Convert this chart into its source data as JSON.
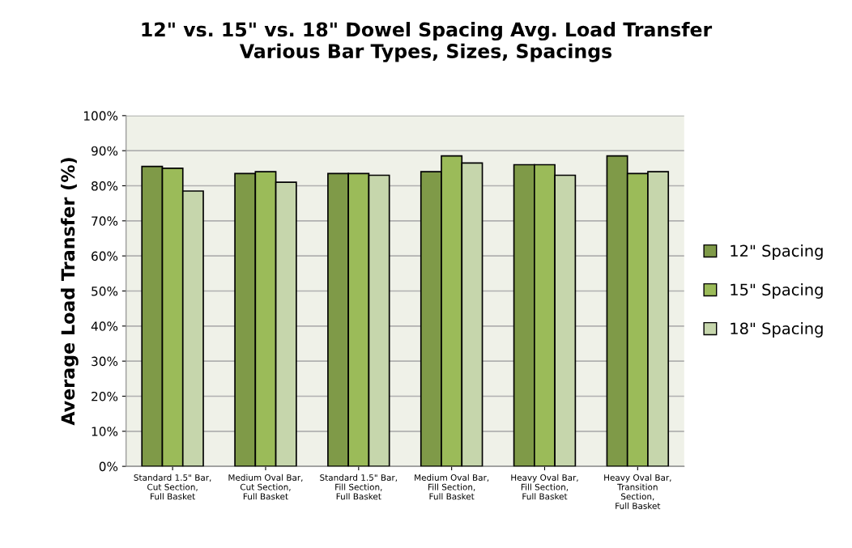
{
  "chart_data": {
    "type": "bar",
    "title": "12\" vs. 15\" vs. 18\" Dowel Spacing Avg. Load Transfer\nVarious Bar Types, Sizes, Spacings",
    "ylabel": "Average Load Transfer (%)",
    "categories": [
      "Standard 1.5\" Bar,\nCut Section,\nFull Basket",
      "Medium Oval Bar,\nCut Section,\nFull Basket",
      "Standard 1.5\" Bar,\nFill Section,\nFull Basket",
      "Medium Oval Bar,\nFill Section,\nFull Basket",
      "Heavy Oval Bar,\nFill Section,\nFull Basket",
      "Heavy Oval Bar,\nTransition\nSection,\nFull Basket"
    ],
    "series": [
      {
        "name": "12\" Spacing",
        "color": "#7f9a48",
        "values": [
          85.5,
          83.5,
          83.5,
          84,
          86,
          88.5
        ]
      },
      {
        "name": "15\" Spacing",
        "color": "#9bbb59",
        "values": [
          85,
          84,
          83.5,
          88.5,
          86,
          83.5
        ]
      },
      {
        "name": "18\" Spacing",
        "color": "#c6d6ac",
        "values": [
          78.5,
          81,
          83,
          86.5,
          83,
          84
        ]
      }
    ],
    "ylim": [
      0,
      100
    ],
    "yticks": [
      {
        "value": 0,
        "label": "0%"
      },
      {
        "value": 10,
        "label": "10%"
      },
      {
        "value": 20,
        "label": "20%"
      },
      {
        "value": 30,
        "label": "30%"
      },
      {
        "value": 40,
        "label": "40%"
      },
      {
        "value": 50,
        "label": "50%"
      },
      {
        "value": 60,
        "label": "60%"
      },
      {
        "value": 70,
        "label": "70%"
      },
      {
        "value": 80,
        "label": "80%"
      },
      {
        "value": 90,
        "label": "90%"
      },
      {
        "value": 100,
        "label": "100%"
      }
    ],
    "grid": "y",
    "legend": "right"
  }
}
